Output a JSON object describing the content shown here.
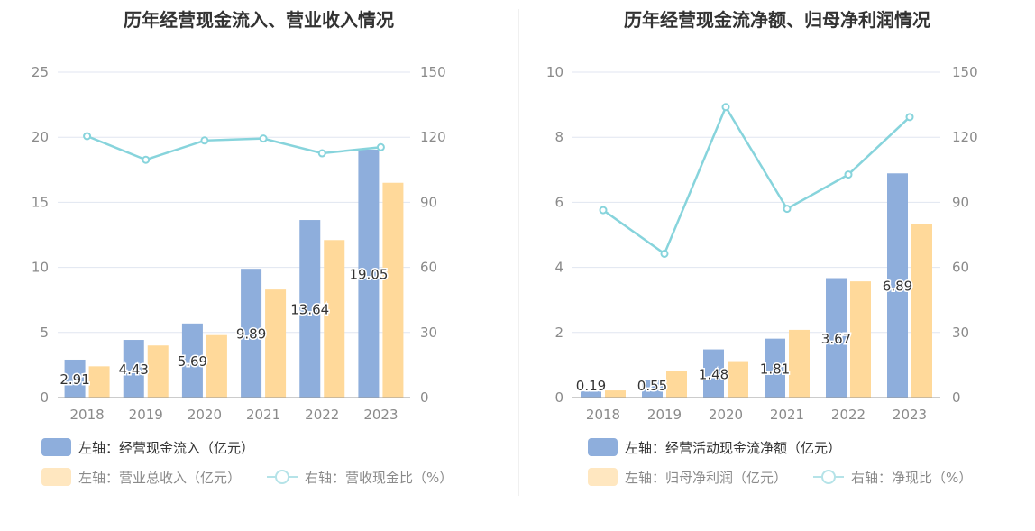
{
  "colors": {
    "bar1": "#8eaedc",
    "bar2": "#ffd99a",
    "line": "#87d4dc",
    "grid": "#e1e6f0",
    "axis": "#999999",
    "tick": "#8a8a8a"
  },
  "charts": [
    {
      "title": "历年经营现金流入、营业收入情况",
      "legend": {
        "bar1": "左轴：经营现金流入（亿元）",
        "bar2": "左轴：营业总收入（亿元）",
        "line": "右轴：营收现金比（%）"
      }
    },
    {
      "title": "历年经营现金流净额、归母净利润情况",
      "legend": {
        "bar1": "左轴：经营活动现金流净额（亿元）",
        "bar2": "左轴：归母净利润（亿元）",
        "line": "右轴：净现比（%）"
      }
    }
  ],
  "chart_data": [
    {
      "type": "bar",
      "title": "历年经营现金流入、营业收入情况",
      "categories": [
        "2018",
        "2019",
        "2020",
        "2021",
        "2022",
        "2023"
      ],
      "series": [
        {
          "name": "左轴：经营现金流入（亿元）",
          "axis": "left",
          "type": "bar",
          "values": [
            2.91,
            4.43,
            5.69,
            9.89,
            13.64,
            19.05
          ],
          "labels": [
            "2.91",
            "4.43",
            "5.69",
            "9.89",
            "13.64",
            "19.05"
          ]
        },
        {
          "name": "左轴：营业总收入（亿元）",
          "axis": "left",
          "type": "bar",
          "values": [
            2.4,
            4.0,
            4.8,
            8.3,
            12.1,
            16.5
          ]
        },
        {
          "name": "右轴：营收现金比（%）",
          "axis": "right",
          "type": "line",
          "values": [
            120.5,
            109.6,
            118.5,
            119.4,
            112.6,
            115.4
          ]
        }
      ],
      "ylim_left": [
        0,
        25
      ],
      "yticks_left": [
        "0",
        "5",
        "10",
        "15",
        "20",
        "25"
      ],
      "ylim_right": [
        0,
        150
      ],
      "yticks_right": [
        "0",
        "30",
        "60",
        "90",
        "120",
        "150"
      ],
      "grid": true,
      "legend_position": "bottom"
    },
    {
      "type": "bar",
      "title": "历年经营现金流净额、归母净利润情况",
      "categories": [
        "2018",
        "2019",
        "2020",
        "2021",
        "2022",
        "2023"
      ],
      "series": [
        {
          "name": "左轴：经营活动现金流净额（亿元）",
          "axis": "left",
          "type": "bar",
          "values": [
            0.19,
            0.55,
            1.48,
            1.81,
            3.67,
            6.89
          ],
          "labels": [
            "0.19",
            "0.55",
            "1.48",
            "1.81",
            "3.67",
            "6.89"
          ]
        },
        {
          "name": "左轴：归母净利润（亿元）",
          "axis": "left",
          "type": "bar",
          "values": [
            0.22,
            0.83,
            1.12,
            2.08,
            3.57,
            5.33
          ]
        },
        {
          "name": "右轴：净现比（%）",
          "axis": "right",
          "type": "line",
          "values": [
            86.4,
            66.3,
            133.9,
            87.0,
            102.8,
            129.3
          ]
        }
      ],
      "ylim_left": [
        0,
        10
      ],
      "yticks_left": [
        "0",
        "2",
        "4",
        "6",
        "8",
        "10"
      ],
      "ylim_right": [
        0,
        150
      ],
      "yticks_right": [
        "0",
        "30",
        "60",
        "90",
        "120",
        "150"
      ],
      "grid": true,
      "legend_position": "bottom"
    }
  ]
}
